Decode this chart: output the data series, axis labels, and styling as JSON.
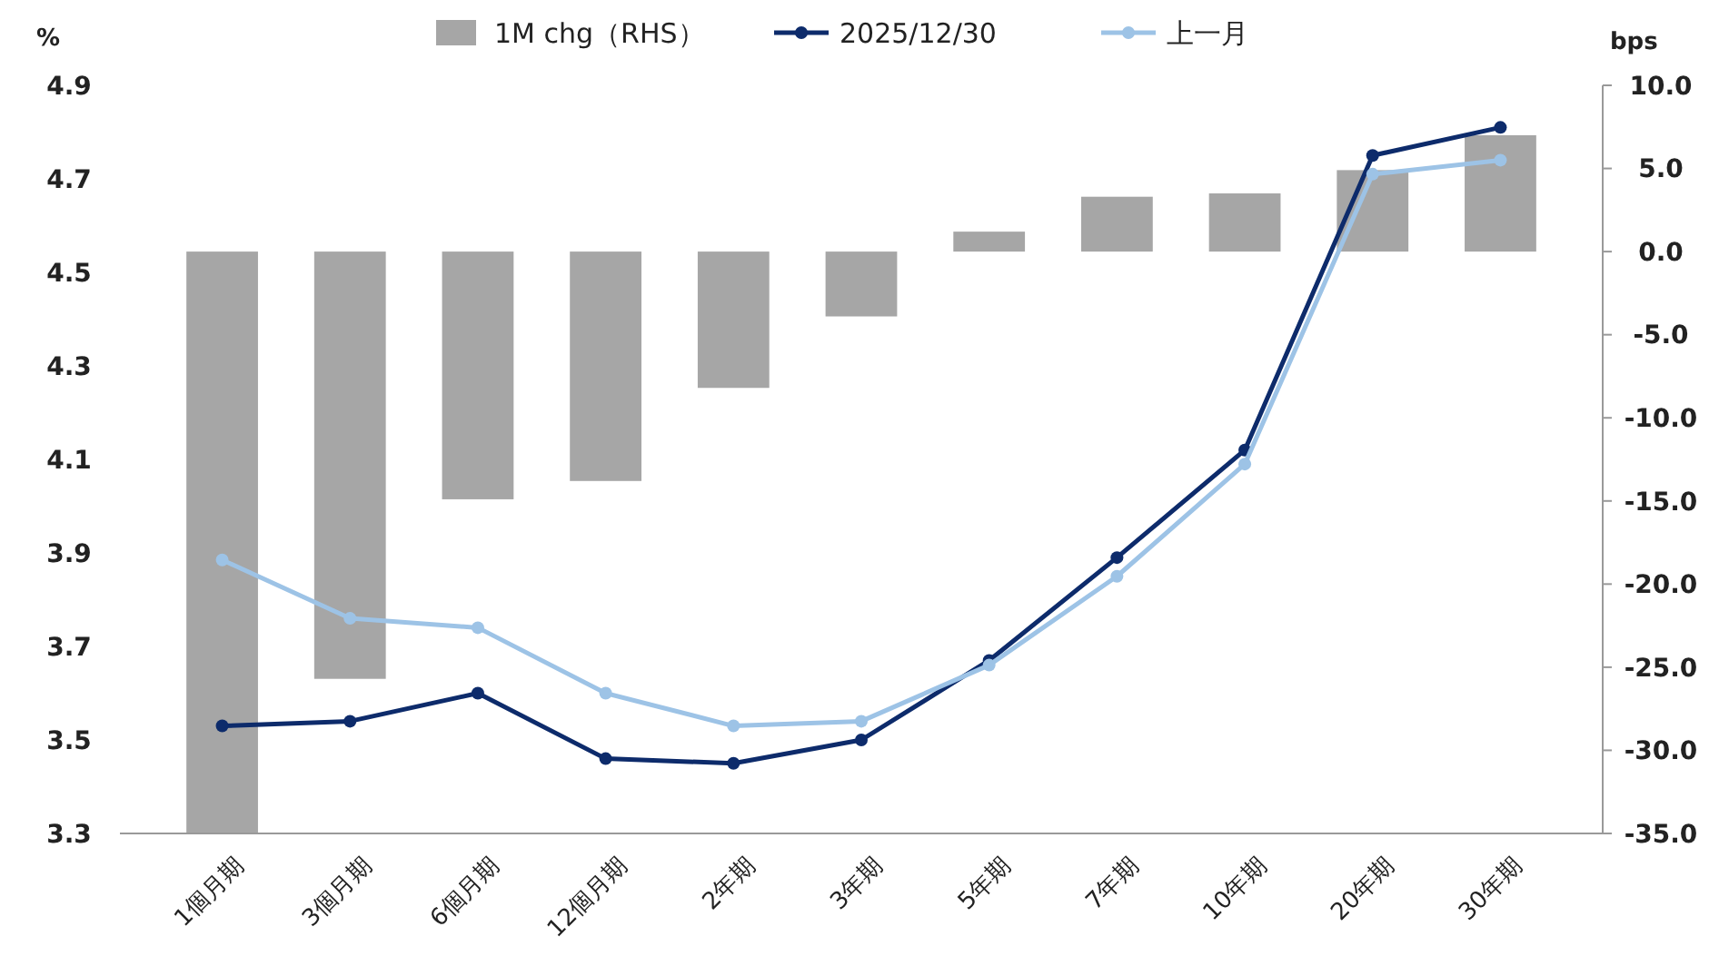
{
  "chart_data": {
    "type": "bar",
    "ylabel": "%",
    "y2label": "bps",
    "categories": [
      "1個月期",
      "3個月期",
      "6個月期",
      "12個月期",
      "2年期",
      "3年期",
      "5年期",
      "7年期",
      "10年期",
      "20年期",
      "30年期"
    ],
    "series": [
      {
        "name": "1M chg（RHS）",
        "axis": "y2",
        "color": "#a6a6a6",
        "values": [
          -35.0,
          -25.7,
          -14.9,
          -13.8,
          -8.2,
          -3.9,
          1.2,
          3.3,
          3.5,
          4.9,
          7.0
        ]
      },
      {
        "name": "2025/12/30",
        "type": "line",
        "color": "#0d2b6b",
        "values": [
          3.53,
          3.54,
          3.6,
          3.46,
          3.45,
          3.5,
          3.67,
          3.89,
          4.12,
          4.75,
          4.81
        ]
      },
      {
        "name": "上一月",
        "type": "line",
        "color": "#9dc3e6",
        "values": [
          3.885,
          3.76,
          3.74,
          3.6,
          3.53,
          3.54,
          3.66,
          3.85,
          4.09,
          4.71,
          4.74
        ]
      }
    ],
    "ylim": [
      3.3,
      4.9
    ],
    "yticks": [
      3.3,
      3.5,
      3.7,
      3.9,
      4.1,
      4.3,
      4.5,
      4.7,
      4.9
    ],
    "y2lim": [
      -35,
      10
    ],
    "y2ticks": [
      {
        "value": -35,
        "label": "-35.0"
      },
      {
        "value": -30,
        "label": "-30.0"
      },
      {
        "value": -25,
        "label": "-25.0"
      },
      {
        "value": -20,
        "label": "-20.0"
      },
      {
        "value": -15,
        "label": "-15.0"
      },
      {
        "value": -10,
        "label": "-10.0"
      },
      {
        "value": -5,
        "label": "-5.0"
      },
      {
        "value": 0,
        "label": "0.0"
      },
      {
        "value": 5,
        "label": "5.0"
      },
      {
        "value": 10,
        "label": "10.0"
      }
    ],
    "grid": false,
    "legend": "top",
    "marker": "circle",
    "line_style": "solid"
  }
}
